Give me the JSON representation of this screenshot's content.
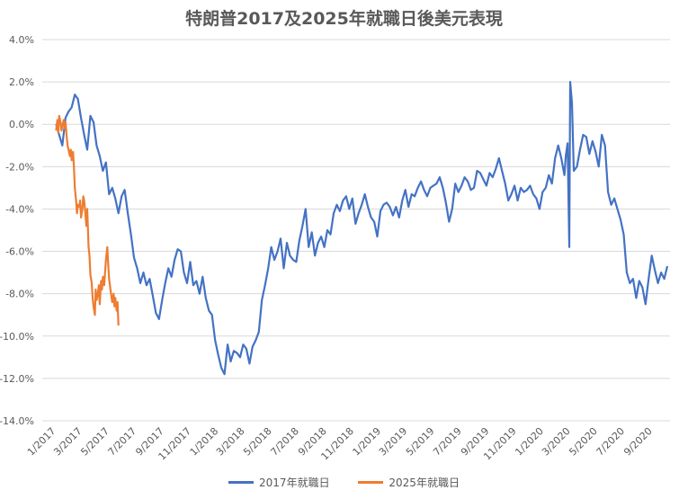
{
  "chart_data": {
    "type": "line",
    "title": "特朗普2017及2025年就職日後美元表現",
    "ylim": [
      -14,
      4
    ],
    "yticks": [
      4,
      2,
      0,
      -2,
      -4,
      -6,
      -8,
      -10,
      -12,
      -14
    ],
    "ytick_labels": [
      "4.0%",
      "2.0%",
      "0.0%",
      "-2.0%",
      "-4.0%",
      "-6.0%",
      "-8.0%",
      "-10.0%",
      "-12.0%",
      "-14.0%"
    ],
    "x_tick_labels": [
      "1/2017",
      "3/2017",
      "5/2017",
      "7/2017",
      "9/2017",
      "11/2017",
      "1/2018",
      "3/2018",
      "5/2018",
      "7/2018",
      "9/2018",
      "11/2018",
      "1/2019",
      "3/2019",
      "5/2019",
      "7/2019",
      "9/2019",
      "11/2019",
      "1/2020",
      "3/2020",
      "5/2020",
      "7/2020",
      "9/2020"
    ],
    "x_tick_dates": [
      "2017-01-20",
      "2017-03-20",
      "2017-05-20",
      "2017-07-20",
      "2017-09-20",
      "2017-11-20",
      "2018-01-20",
      "2018-03-20",
      "2018-05-20",
      "2018-07-20",
      "2018-09-20",
      "2018-11-20",
      "2019-01-20",
      "2019-03-20",
      "2019-05-20",
      "2019-07-20",
      "2019-09-20",
      "2019-11-20",
      "2020-01-20",
      "2020-03-20",
      "2020-05-20",
      "2020-07-20",
      "2020-09-20"
    ],
    "x_range": [
      "2016-12-20",
      "2020-10-29"
    ],
    "grid": true,
    "legend_position": "bottom",
    "series": [
      {
        "name": "2017年就職日",
        "color": "#4472C4",
        "x": [
          "2017-01-20",
          "2017-01-27",
          "2017-02-03",
          "2017-02-10",
          "2017-02-17",
          "2017-02-24",
          "2017-03-03",
          "2017-03-10",
          "2017-03-17",
          "2017-03-24",
          "2017-03-31",
          "2017-04-07",
          "2017-04-14",
          "2017-04-21",
          "2017-04-28",
          "2017-05-05",
          "2017-05-12",
          "2017-05-19",
          "2017-05-26",
          "2017-06-02",
          "2017-06-09",
          "2017-06-16",
          "2017-06-23",
          "2017-06-30",
          "2017-07-07",
          "2017-07-14",
          "2017-07-21",
          "2017-07-28",
          "2017-08-04",
          "2017-08-11",
          "2017-08-18",
          "2017-08-25",
          "2017-09-01",
          "2017-09-08",
          "2017-09-15",
          "2017-09-22",
          "2017-09-29",
          "2017-10-06",
          "2017-10-13",
          "2017-10-20",
          "2017-10-27",
          "2017-11-03",
          "2017-11-10",
          "2017-11-17",
          "2017-11-24",
          "2017-12-01",
          "2017-12-08",
          "2017-12-15",
          "2017-12-22",
          "2017-12-29",
          "2018-01-05",
          "2018-01-12",
          "2018-01-19",
          "2018-01-26",
          "2018-02-02",
          "2018-02-09",
          "2018-02-16",
          "2018-02-23",
          "2018-03-02",
          "2018-03-09",
          "2018-03-16",
          "2018-03-23",
          "2018-03-30",
          "2018-04-06",
          "2018-04-13",
          "2018-04-20",
          "2018-04-27",
          "2018-05-04",
          "2018-05-11",
          "2018-05-18",
          "2018-05-25",
          "2018-06-01",
          "2018-06-08",
          "2018-06-15",
          "2018-06-22",
          "2018-06-29",
          "2018-07-06",
          "2018-07-13",
          "2018-07-20",
          "2018-07-27",
          "2018-08-03",
          "2018-08-10",
          "2018-08-17",
          "2018-08-24",
          "2018-08-31",
          "2018-09-07",
          "2018-09-14",
          "2018-09-21",
          "2018-09-28",
          "2018-10-05",
          "2018-10-12",
          "2018-10-19",
          "2018-10-26",
          "2018-11-02",
          "2018-11-09",
          "2018-11-16",
          "2018-11-23",
          "2018-11-30",
          "2018-12-07",
          "2018-12-14",
          "2018-12-21",
          "2018-12-28",
          "2019-01-04",
          "2019-01-11",
          "2019-01-18",
          "2019-01-25",
          "2019-02-01",
          "2019-02-08",
          "2019-02-15",
          "2019-02-22",
          "2019-03-01",
          "2019-03-08",
          "2019-03-15",
          "2019-03-22",
          "2019-03-29",
          "2019-04-05",
          "2019-04-12",
          "2019-04-19",
          "2019-04-26",
          "2019-05-03",
          "2019-05-10",
          "2019-05-17",
          "2019-05-24",
          "2019-05-31",
          "2019-06-07",
          "2019-06-14",
          "2019-06-21",
          "2019-06-28",
          "2019-07-05",
          "2019-07-12",
          "2019-07-19",
          "2019-07-26",
          "2019-08-02",
          "2019-08-09",
          "2019-08-16",
          "2019-08-23",
          "2019-08-30",
          "2019-09-06",
          "2019-09-13",
          "2019-09-20",
          "2019-09-27",
          "2019-10-04",
          "2019-10-11",
          "2019-10-18",
          "2019-10-25",
          "2019-11-01",
          "2019-11-08",
          "2019-11-15",
          "2019-11-22",
          "2019-11-29",
          "2019-12-06",
          "2019-12-13",
          "2019-12-20",
          "2019-12-27",
          "2020-01-03",
          "2020-01-10",
          "2020-01-17",
          "2020-01-24",
          "2020-01-31",
          "2020-02-07",
          "2020-02-14",
          "2020-02-21",
          "2020-02-28",
          "2020-03-06",
          "2020-03-09",
          "2020-03-13",
          "2020-03-17",
          "2020-03-19",
          "2020-03-23",
          "2020-03-27",
          "2020-04-03",
          "2020-04-10",
          "2020-04-17",
          "2020-04-24",
          "2020-05-01",
          "2020-05-08",
          "2020-05-15",
          "2020-05-22",
          "2020-05-29",
          "2020-06-05",
          "2020-06-12",
          "2020-06-19",
          "2020-06-26",
          "2020-07-03",
          "2020-07-10",
          "2020-07-17",
          "2020-07-24",
          "2020-07-31",
          "2020-08-07",
          "2020-08-14",
          "2020-08-21",
          "2020-08-28",
          "2020-09-04",
          "2020-09-11",
          "2020-09-18",
          "2020-09-25",
          "2020-10-02",
          "2020-10-09",
          "2020-10-16",
          "2020-10-23"
        ],
        "y": [
          0.0,
          -0.5,
          -1.0,
          0.3,
          0.6,
          0.8,
          1.4,
          1.2,
          0.3,
          -0.5,
          -1.2,
          0.4,
          0.1,
          -1.0,
          -1.5,
          -2.2,
          -1.8,
          -3.3,
          -3.0,
          -3.5,
          -4.2,
          -3.4,
          -3.1,
          -4.2,
          -5.2,
          -6.3,
          -6.8,
          -7.5,
          -7.0,
          -7.6,
          -7.3,
          -8.1,
          -8.9,
          -9.2,
          -8.3,
          -7.5,
          -6.8,
          -7.2,
          -6.4,
          -5.9,
          -6.0,
          -7.0,
          -7.5,
          -6.5,
          -7.6,
          -7.4,
          -8.0,
          -7.2,
          -8.2,
          -8.8,
          -9.0,
          -10.2,
          -10.9,
          -11.5,
          -11.8,
          -10.4,
          -11.2,
          -10.7,
          -10.8,
          -11.0,
          -10.4,
          -10.6,
          -11.3,
          -10.5,
          -10.2,
          -9.8,
          -8.3,
          -7.6,
          -6.8,
          -5.8,
          -6.4,
          -6.0,
          -5.4,
          -6.8,
          -5.6,
          -6.2,
          -6.4,
          -6.5,
          -5.5,
          -4.8,
          -4.0,
          -5.8,
          -5.1,
          -6.2,
          -5.6,
          -5.3,
          -5.8,
          -5.0,
          -5.2,
          -4.2,
          -3.8,
          -4.1,
          -3.6,
          -3.4,
          -4.0,
          -3.5,
          -4.7,
          -4.2,
          -3.8,
          -3.3,
          -3.9,
          -4.4,
          -4.6,
          -5.3,
          -4.1,
          -3.8,
          -3.7,
          -3.9,
          -4.3,
          -3.9,
          -4.4,
          -3.6,
          -3.1,
          -3.9,
          -3.3,
          -3.4,
          -3.0,
          -2.7,
          -3.1,
          -3.4,
          -3.0,
          -2.9,
          -2.8,
          -2.5,
          -3.0,
          -3.7,
          -4.6,
          -4.0,
          -2.8,
          -3.2,
          -2.9,
          -2.5,
          -2.7,
          -3.1,
          -3.0,
          -2.2,
          -2.3,
          -2.6,
          -2.9,
          -2.3,
          -2.5,
          -2.1,
          -1.6,
          -2.2,
          -2.8,
          -3.6,
          -3.3,
          -2.9,
          -3.6,
          -3.0,
          -3.2,
          -3.1,
          -2.9,
          -3.3,
          -3.5,
          -4.0,
          -3.2,
          -3.0,
          -2.4,
          -2.8,
          -1.6,
          -1.0,
          -1.6,
          -2.4,
          -1.5,
          -0.9,
          -5.8,
          2.0,
          1.0,
          -2.2,
          -2.0,
          -1.2,
          -0.5,
          -0.6,
          -1.4,
          -0.8,
          -1.3,
          -2.0,
          -0.5,
          -1.0,
          -3.2,
          -3.8,
          -3.5,
          -4.0,
          -4.5,
          -5.2,
          -7.0,
          -7.5,
          -7.3,
          -8.2,
          -7.4,
          -7.7,
          -8.5,
          -7.3,
          -6.2,
          -6.9,
          -7.5,
          -7.0,
          -7.3,
          -6.7
        ]
      },
      {
        "name": "2025年就職日",
        "color": "#ED7D31",
        "x": [
          "2017-01-20",
          "2017-01-23",
          "2017-01-25",
          "2017-01-27",
          "2017-01-30",
          "2017-02-01",
          "2017-02-03",
          "2017-02-06",
          "2017-02-08",
          "2017-02-10",
          "2017-02-13",
          "2017-02-15",
          "2017-02-17",
          "2017-02-20",
          "2017-02-22",
          "2017-02-24",
          "2017-02-27",
          "2017-03-01",
          "2017-03-03",
          "2017-03-06",
          "2017-03-08",
          "2017-03-10",
          "2017-03-13",
          "2017-03-15",
          "2017-03-17",
          "2017-03-20",
          "2017-03-22",
          "2017-03-24",
          "2017-03-27",
          "2017-03-29",
          "2017-03-31",
          "2017-04-03",
          "2017-04-05",
          "2017-04-07",
          "2017-04-10",
          "2017-04-12",
          "2017-04-14",
          "2017-04-17",
          "2017-04-19",
          "2017-04-21",
          "2017-04-24",
          "2017-04-26",
          "2017-04-28",
          "2017-05-01",
          "2017-05-03",
          "2017-05-05",
          "2017-05-08",
          "2017-05-10",
          "2017-05-12",
          "2017-05-15",
          "2017-05-17",
          "2017-05-19",
          "2017-05-22",
          "2017-05-24",
          "2017-05-26",
          "2017-05-29",
          "2017-05-31",
          "2017-06-02",
          "2017-06-05",
          "2017-06-07",
          "2017-06-09"
        ],
        "y": [
          -0.3,
          0.2,
          -0.4,
          0.4,
          0.1,
          -0.3,
          -0.1,
          0.2,
          -0.2,
          0.1,
          -0.6,
          -1.0,
          -1.2,
          -1.5,
          -1.2,
          -1.7,
          -1.3,
          -2.0,
          -3.0,
          -3.6,
          -4.2,
          -3.8,
          -3.9,
          -3.6,
          -4.4,
          -4.0,
          -3.4,
          -3.6,
          -4.3,
          -4.8,
          -4.0,
          -5.8,
          -6.2,
          -7.1,
          -7.5,
          -8.2,
          -8.6,
          -9.0,
          -7.8,
          -8.3,
          -8.0,
          -7.6,
          -8.5,
          -7.4,
          -7.8,
          -7.2,
          -7.6,
          -7.0,
          -6.4,
          -5.8,
          -6.6,
          -7.3,
          -7.8,
          -8.1,
          -8.4,
          -8.0,
          -8.6,
          -8.2,
          -8.8,
          -8.4,
          -9.5
        ]
      }
    ]
  }
}
